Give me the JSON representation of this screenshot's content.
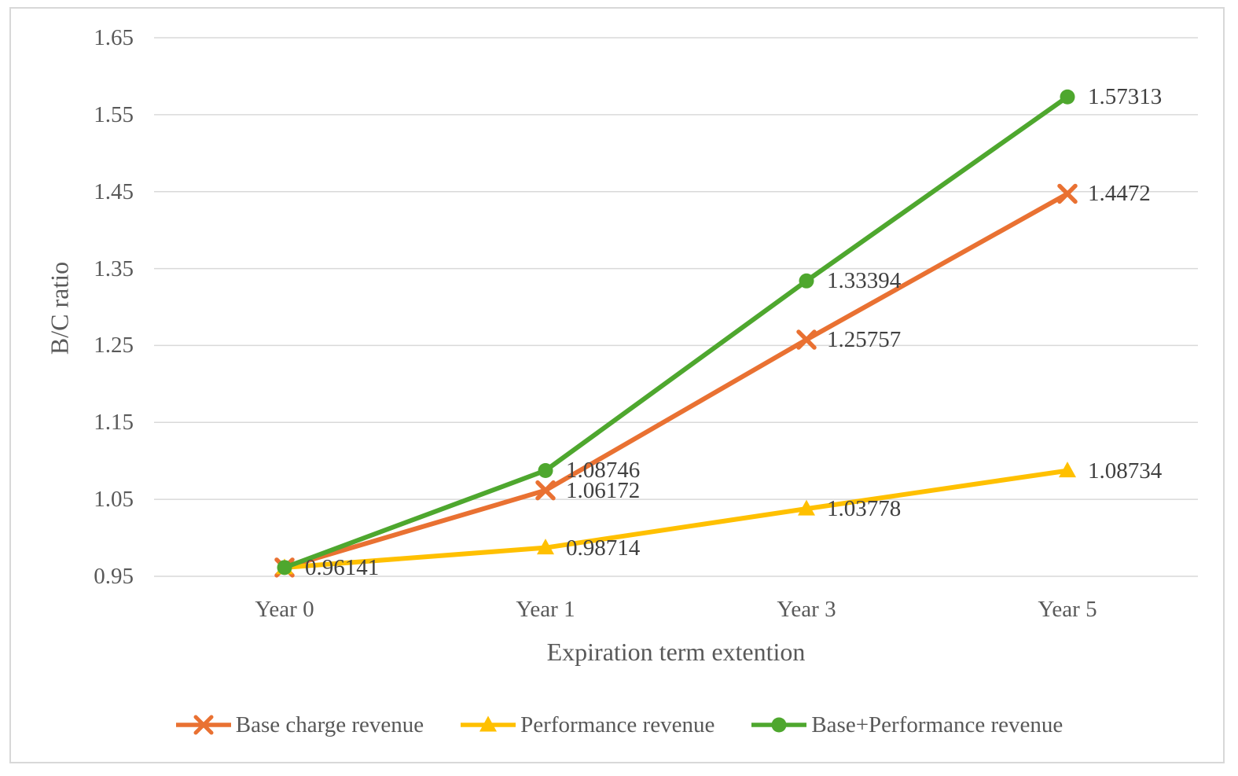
{
  "chart_data": {
    "type": "line",
    "title": "",
    "xlabel": "Expiration term extention",
    "ylabel": "B/C ratio",
    "categories": [
      "Year 0",
      "Year 1",
      "Year 3",
      "Year 5"
    ],
    "ylim": [
      0.95,
      1.65
    ],
    "ytick_step": 0.1,
    "yticks": [
      "0.95",
      "1.05",
      "1.15",
      "1.25",
      "1.35",
      "1.45",
      "1.55",
      "1.65"
    ],
    "grid": true,
    "legend_position": "bottom",
    "series": [
      {
        "name": "Base charge revenue",
        "color": "#E97132",
        "marker": "x",
        "values": [
          0.96141,
          1.06172,
          1.25757,
          1.4472
        ],
        "labels": [
          "",
          "1.06172",
          "1.25757",
          "1.4472"
        ]
      },
      {
        "name": "Performance revenue",
        "color": "#FFC000",
        "marker": "triangle",
        "values": [
          0.96141,
          0.98714,
          1.03778,
          1.08734
        ],
        "labels": [
          "",
          "0.98714",
          "1.03778",
          "1.08734"
        ]
      },
      {
        "name": "Base+Performance revenue",
        "color": "#4EA72E",
        "marker": "circle",
        "values": [
          0.96141,
          1.08746,
          1.33394,
          1.57313
        ],
        "labels": [
          "0.96141",
          "1.08746",
          "1.33394",
          "1.57313"
        ]
      }
    ]
  },
  "colors": {
    "grid": "#D9D9D9",
    "axis_text": "#595959",
    "data_label": "#404040",
    "border": "#D8D8D8",
    "background": "#FFFFFF"
  }
}
